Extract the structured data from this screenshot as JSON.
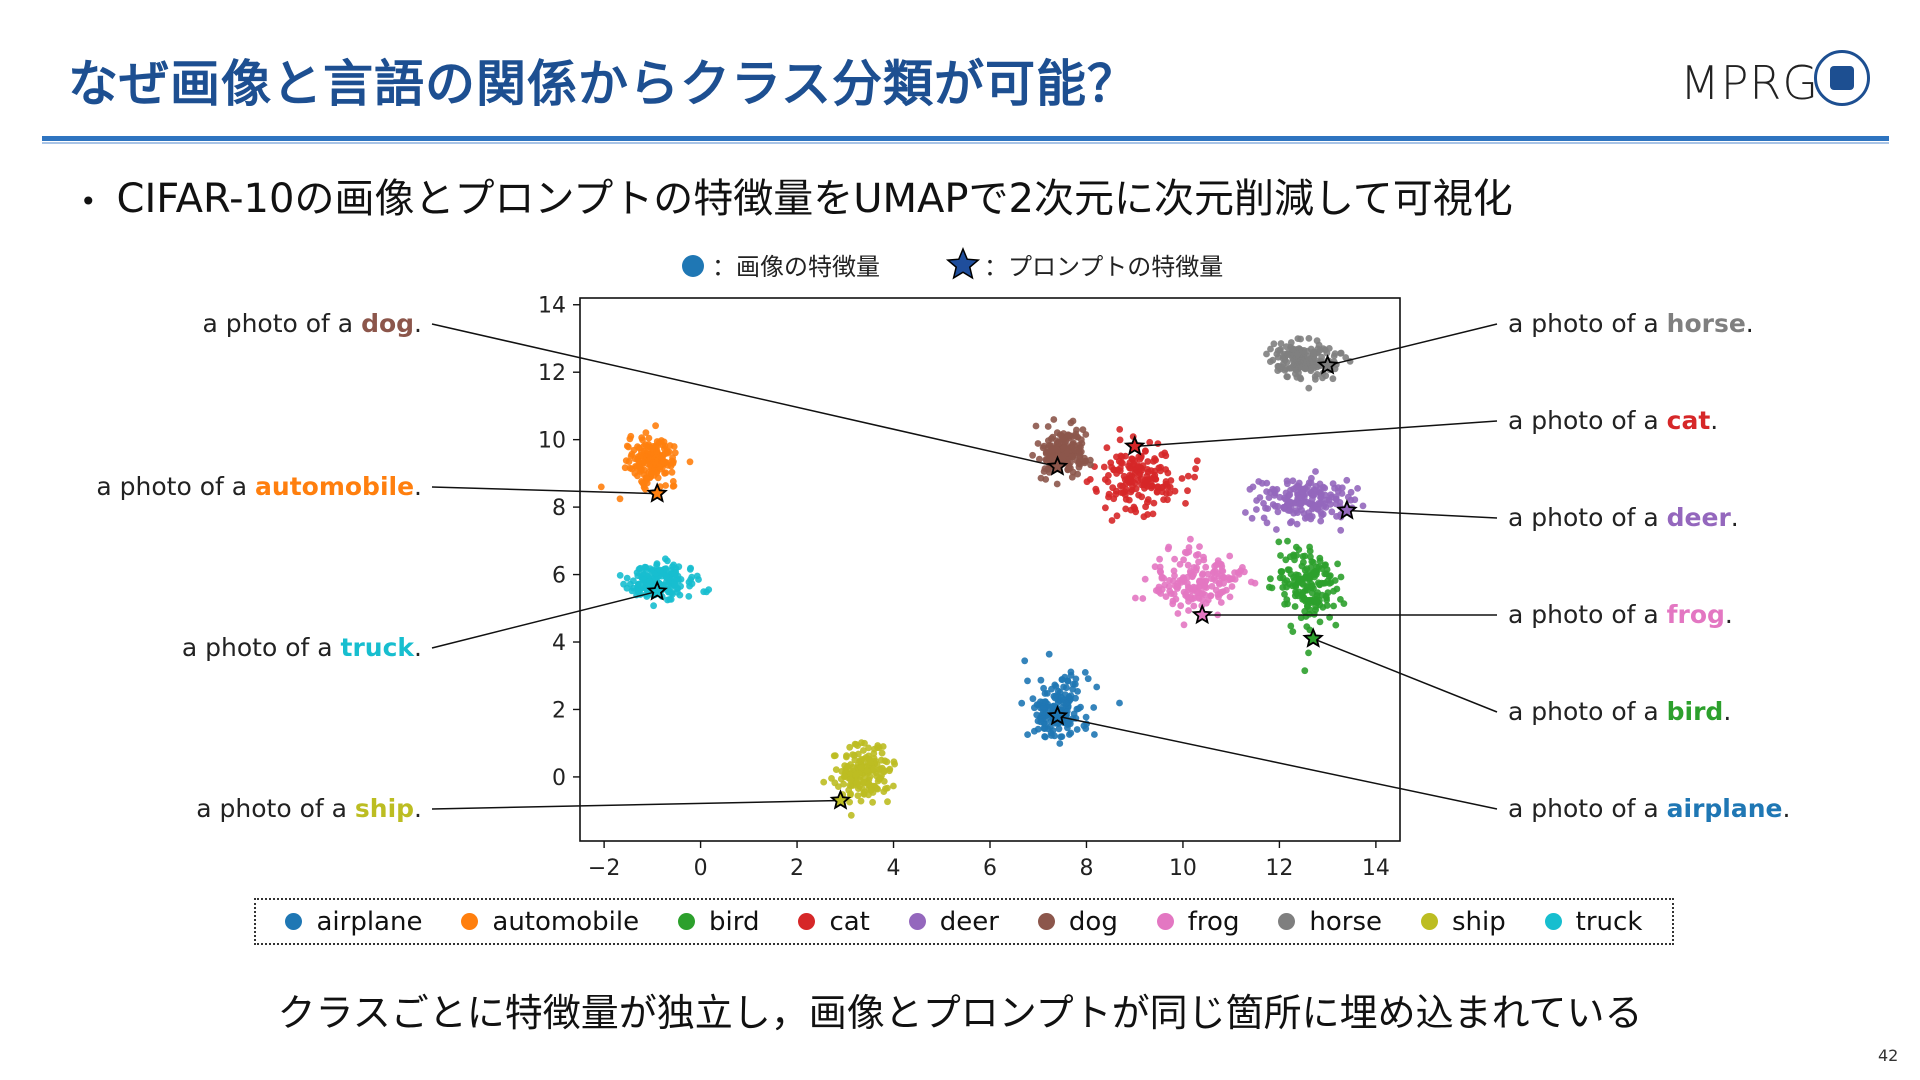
{
  "slide": {
    "title": "なぜ画像と言語の関係からクラス分類が可能？",
    "bullet": "CIFAR-10の画像とプロンプトの特徴量をUMAPで2次元に次元削減して可視化",
    "conclusion": "クラスごとに特徴量が独立し，画像とプロンプトが同じ箇所に埋め込まれている",
    "page_number": "42",
    "logo_text": "MPRG"
  },
  "chart_data": {
    "type": "scatter",
    "xlim": [
      -2.5,
      14.5
    ],
    "ylim": [
      -1.9,
      14.2
    ],
    "xticks": [
      -2,
      0,
      2,
      4,
      6,
      8,
      10,
      12,
      14
    ],
    "yticks": [
      0,
      2,
      4,
      6,
      8,
      10,
      12,
      14
    ],
    "marker_legend": {
      "image": "：画像の特徴量",
      "prompt": "：プロンプトの特徴量"
    },
    "prompt_prefix": "a photo of a ",
    "series": [
      {
        "name": "airplane",
        "color": "#1f77b4",
        "cluster": {
          "cx": 7.4,
          "cy": 2.0,
          "sx": 0.6,
          "sy": 0.9
        },
        "prompt": {
          "x": 7.4,
          "y": 1.8
        }
      },
      {
        "name": "automobile",
        "color": "#ff7f0e",
        "cluster": {
          "cx": -1.0,
          "cy": 9.4,
          "sx": 0.45,
          "sy": 0.6
        },
        "prompt": {
          "x": -0.9,
          "y": 8.4
        }
      },
      {
        "name": "bird",
        "color": "#2ca02c",
        "cluster": {
          "cx": 12.6,
          "cy": 5.6,
          "sx": 0.6,
          "sy": 1.1
        },
        "prompt": {
          "x": 12.7,
          "y": 4.1
        }
      },
      {
        "name": "cat",
        "color": "#d62728",
        "cluster": {
          "cx": 9.1,
          "cy": 8.9,
          "sx": 0.8,
          "sy": 0.9
        },
        "prompt": {
          "x": 9.0,
          "y": 9.8
        }
      },
      {
        "name": "deer",
        "color": "#9467bd",
        "cluster": {
          "cx": 12.5,
          "cy": 8.2,
          "sx": 0.9,
          "sy": 0.6
        },
        "prompt": {
          "x": 13.4,
          "y": 7.9
        }
      },
      {
        "name": "dog",
        "color": "#8c564b",
        "cluster": {
          "cx": 7.5,
          "cy": 9.6,
          "sx": 0.5,
          "sy": 0.6
        },
        "prompt": {
          "x": 7.4,
          "y": 9.2
        }
      },
      {
        "name": "frog",
        "color": "#e377c2",
        "cluster": {
          "cx": 10.3,
          "cy": 5.8,
          "sx": 0.8,
          "sy": 0.8
        },
        "prompt": {
          "x": 10.4,
          "y": 4.8
        }
      },
      {
        "name": "horse",
        "color": "#7f7f7f",
        "cluster": {
          "cx": 12.5,
          "cy": 12.4,
          "sx": 0.6,
          "sy": 0.5
        },
        "prompt": {
          "x": 13.0,
          "y": 12.2
        }
      },
      {
        "name": "ship",
        "color": "#bcbd22",
        "cluster": {
          "cx": 3.4,
          "cy": 0.1,
          "sx": 0.6,
          "sy": 0.75
        },
        "prompt": {
          "x": 2.9,
          "y": -0.7
        }
      },
      {
        "name": "truck",
        "color": "#17becf",
        "cluster": {
          "cx": -0.8,
          "cy": 5.8,
          "sx": 0.6,
          "sy": 0.45
        },
        "prompt": {
          "x": -0.9,
          "y": 5.5
        }
      }
    ],
    "annotations_left": [
      "dog",
      "automobile",
      "truck",
      "ship"
    ],
    "annotations_right": [
      "horse",
      "cat",
      "deer",
      "frog",
      "bird",
      "airplane"
    ]
  }
}
